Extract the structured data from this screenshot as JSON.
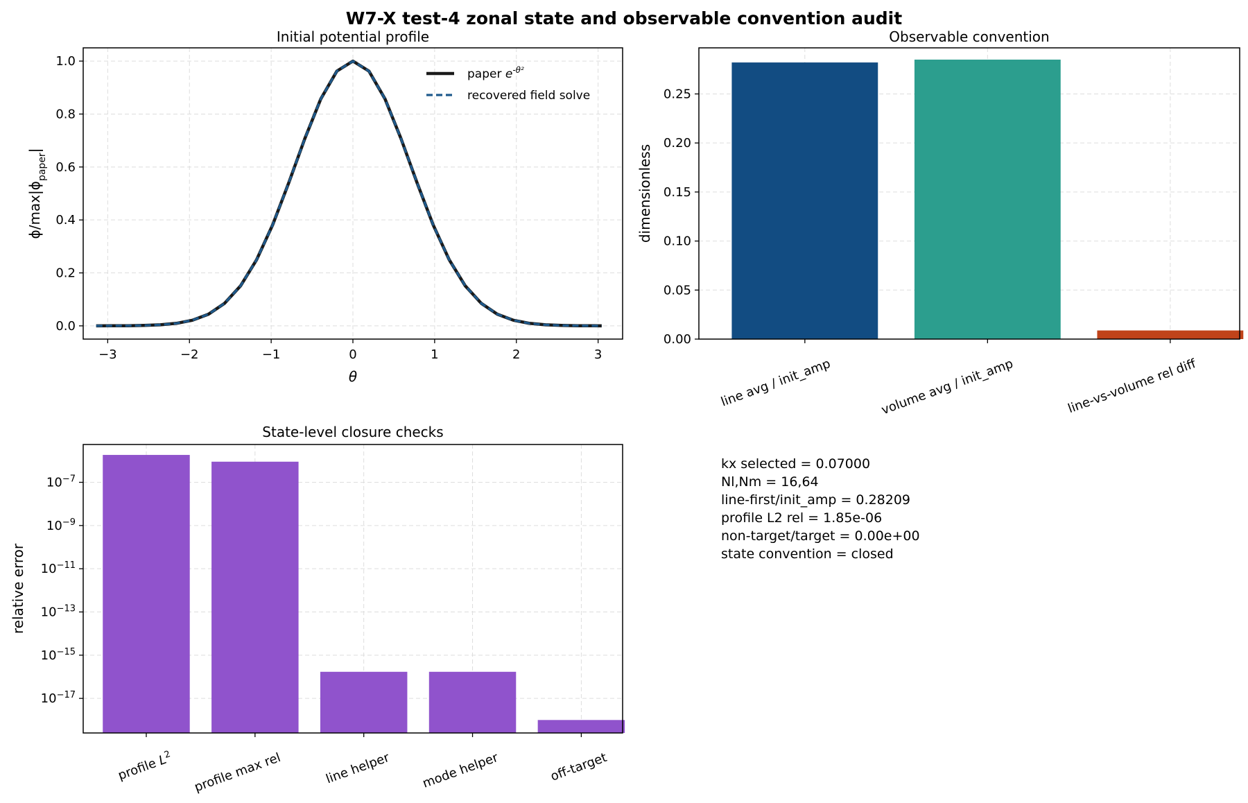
{
  "figure": {
    "suptitle": "W7-X test-4 zonal state and observable convention audit"
  },
  "chart_data": [
    {
      "type": "line",
      "title": "Initial potential profile",
      "xlabel": "θ",
      "ylabel": "ϕ/max|ϕ_paper|",
      "xlim": [
        -3.3,
        3.3
      ],
      "ylim": [
        -0.05,
        1.05
      ],
      "xticks": [
        -3,
        -2,
        -1,
        0,
        1,
        2,
        3
      ],
      "yticks": [
        0.0,
        0.2,
        0.4,
        0.6,
        0.8,
        1.0
      ],
      "grid": true,
      "legend": "top-right",
      "x": [
        -3.1416,
        -2.9452,
        -2.7489,
        -2.5525,
        -2.3562,
        -2.1598,
        -1.9635,
        -1.7671,
        -1.5708,
        -1.3744,
        -1.1781,
        -0.9817,
        -0.7854,
        -0.589,
        -0.3927,
        -0.1963,
        0.0,
        0.1963,
        0.3927,
        0.589,
        0.7854,
        0.9817,
        1.1781,
        1.3744,
        1.5708,
        1.7671,
        1.9635,
        2.1598,
        2.3562,
        2.5525,
        2.7489,
        2.9452,
        3.0434
      ],
      "series": [
        {
          "name": "paper e^{-θ²}",
          "color": "#1a1a1a",
          "style": "solid",
          "values": [
            0.0001,
            0.0002,
            0.0005,
            0.0015,
            0.0039,
            0.0094,
            0.0212,
            0.0441,
            0.0848,
            0.1512,
            0.2496,
            0.3815,
            0.5398,
            0.7068,
            0.8573,
            0.9622,
            1.0,
            0.9622,
            0.8573,
            0.7068,
            0.5398,
            0.3815,
            0.2496,
            0.1512,
            0.0848,
            0.0441,
            0.0212,
            0.0094,
            0.0039,
            0.0015,
            0.0005,
            0.0002,
            0.0001
          ]
        },
        {
          "name": "recovered field solve",
          "color": "#1f5a8c",
          "style": "dashed",
          "values": [
            0.0001,
            0.0002,
            0.0005,
            0.0015,
            0.0039,
            0.0094,
            0.0212,
            0.0441,
            0.0848,
            0.1512,
            0.2496,
            0.3815,
            0.5398,
            0.7068,
            0.8573,
            0.9622,
            1.0,
            0.9622,
            0.8573,
            0.7068,
            0.5398,
            0.3815,
            0.2496,
            0.1512,
            0.0848,
            0.0441,
            0.0212,
            0.0094,
            0.0039,
            0.0015,
            0.0005,
            0.0002,
            0.0001
          ]
        }
      ]
    },
    {
      "type": "bar",
      "title": "Observable convention",
      "xlabel": "",
      "ylabel": "dimensionless",
      "categories": [
        "line avg / init_amp",
        "volume avg / init_amp",
        "line-vs-volume rel diff"
      ],
      "values": [
        0.28209,
        0.285,
        0.0088
      ],
      "colors": [
        "#124c82",
        "#2c9e8e",
        "#c0431a"
      ],
      "ylim": [
        0,
        0.297
      ],
      "yticks": [
        "0.00",
        "0.05",
        "0.10",
        "0.15",
        "0.20",
        "0.25"
      ],
      "grid": true
    },
    {
      "type": "bar",
      "title": "State-level closure checks",
      "xlabel": "",
      "ylabel": "relative error",
      "yscale": "log",
      "categories": [
        "profile L²",
        "profile max rel",
        "line helper",
        "mode helper",
        "off-target"
      ],
      "values": [
        1.85e-06,
        9e-07,
        1.7e-16,
        1.7e-16,
        1e-18
      ],
      "color": "#9053cc",
      "ylim_exp": [
        -18.6,
        -5.25
      ],
      "ytick_exponents": [
        "−7",
        "−9",
        "−11",
        "−13",
        "−15",
        "−17"
      ],
      "grid": true
    }
  ],
  "info_box": {
    "lines": [
      "kx selected = 0.07000",
      "Nl,Nm = 16,64",
      "line-first/init_amp = 0.28209",
      "profile L2 rel = 1.85e-06",
      "non-target/target = 0.00e+00",
      "state convention = closed"
    ]
  }
}
